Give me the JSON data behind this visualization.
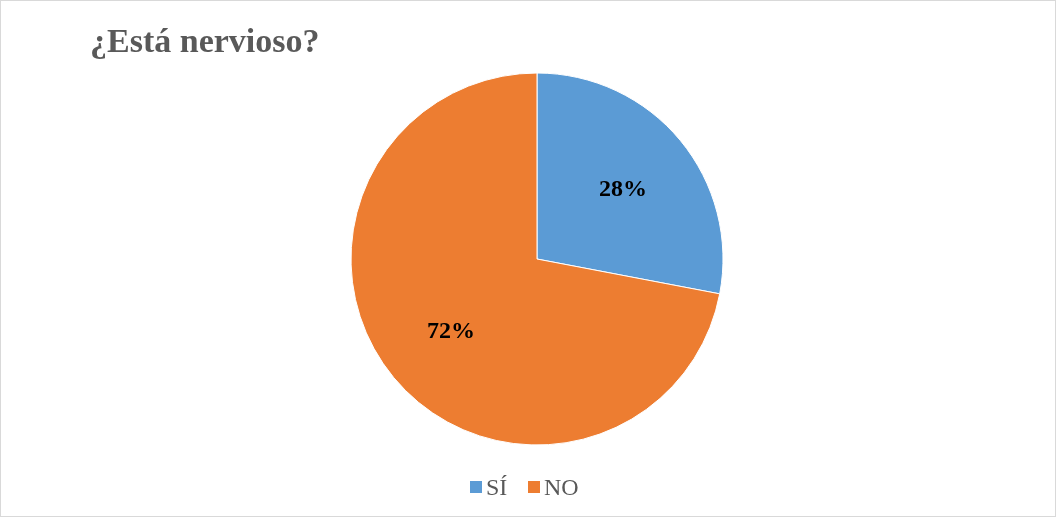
{
  "chart_data": {
    "type": "pie",
    "title": "¿Está nervioso?",
    "categories": [
      "SÍ",
      "NO"
    ],
    "values": [
      28,
      72
    ],
    "colors": [
      "#5b9bd5",
      "#ed7d31"
    ],
    "value_labels": [
      "28%",
      "72%"
    ],
    "legend": "bottom"
  }
}
